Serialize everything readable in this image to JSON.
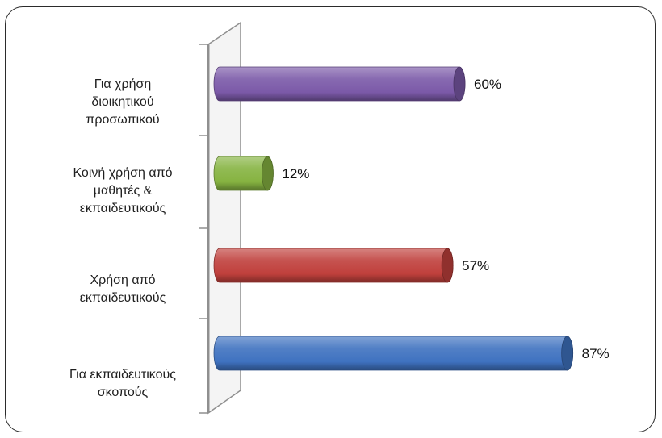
{
  "chart_data": {
    "type": "bar",
    "orientation": "horizontal",
    "style": "3d-cylinder",
    "categories": [
      [
        "Για χρήση",
        "διοικητικού",
        "προσωπικού"
      ],
      [
        "Κοινή χρήση από",
        "μαθητές &",
        "εκπαιδευτικούς"
      ],
      [
        "Χρήση από",
        "εκπαιδευτικούς"
      ],
      [
        "Για εκπαιδευτικούς",
        "σκοπούς"
      ]
    ],
    "values": [
      60,
      12,
      57,
      87
    ],
    "value_labels": [
      "60%",
      "12%",
      "57%",
      "87%"
    ],
    "colors": [
      "#7b59a8",
      "#86b341",
      "#c0403c",
      "#3f72c0"
    ],
    "xlim": [
      0,
      100
    ],
    "title": "",
    "xlabel": "",
    "ylabel": "",
    "grid": false,
    "legend": "none"
  }
}
